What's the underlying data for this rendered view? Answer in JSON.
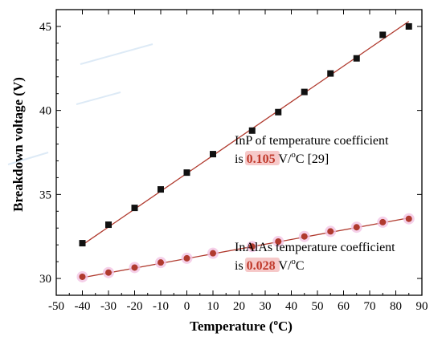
{
  "chart_data": {
    "type": "scatter",
    "xlabel_prefix": "Temperature (",
    "xlabel_sup": "o",
    "xlabel_suffix": "C)",
    "ylabel": "Breakdown voltage (V)",
    "xlim": [
      -50,
      90
    ],
    "ylim": [
      29,
      46
    ],
    "x_ticks": [
      -50,
      -40,
      -30,
      -20,
      -10,
      0,
      10,
      20,
      30,
      40,
      50,
      60,
      70,
      80,
      90
    ],
    "y_ticks": [
      30,
      35,
      40,
      45
    ],
    "grid": false,
    "series": [
      {
        "marker": "square",
        "color": "#111111",
        "line_color": "#b03a2e",
        "x": [
          -40,
          -30,
          -20,
          -10,
          0,
          10,
          25,
          35,
          45,
          55,
          65,
          75,
          85
        ],
        "y": [
          32.1,
          33.2,
          34.2,
          35.3,
          36.3,
          37.4,
          38.8,
          39.9,
          41.1,
          42.2,
          43.1,
          44.5,
          45.0
        ],
        "fit": {
          "x": [
            -40,
            85
          ],
          "y": [
            32.0,
            45.3
          ]
        }
      },
      {
        "marker": "circle",
        "color": "#b03a2e",
        "line_color": "#b03a2e",
        "x": [
          -40,
          -30,
          -20,
          -10,
          0,
          10,
          25,
          35,
          45,
          55,
          65,
          75,
          85
        ],
        "y": [
          30.1,
          30.35,
          30.65,
          30.95,
          31.2,
          31.5,
          31.9,
          32.2,
          32.5,
          32.8,
          33.05,
          33.35,
          33.55
        ],
        "fit": {
          "x": [
            -40,
            85
          ],
          "y": [
            30.05,
            33.6
          ]
        }
      }
    ],
    "annotations": [
      {
        "line1": "InP of temperature coefficient",
        "prefix": "is ",
        "value": "0.105",
        "unit_a": " V/",
        "unit_sup": "o",
        "unit_b": "C [29]"
      },
      {
        "line1": "InAlAs temperature coefficient",
        "prefix": "is ",
        "value": "0.028",
        "unit_a": " V/",
        "unit_sup": "o",
        "unit_b": "C"
      }
    ]
  }
}
